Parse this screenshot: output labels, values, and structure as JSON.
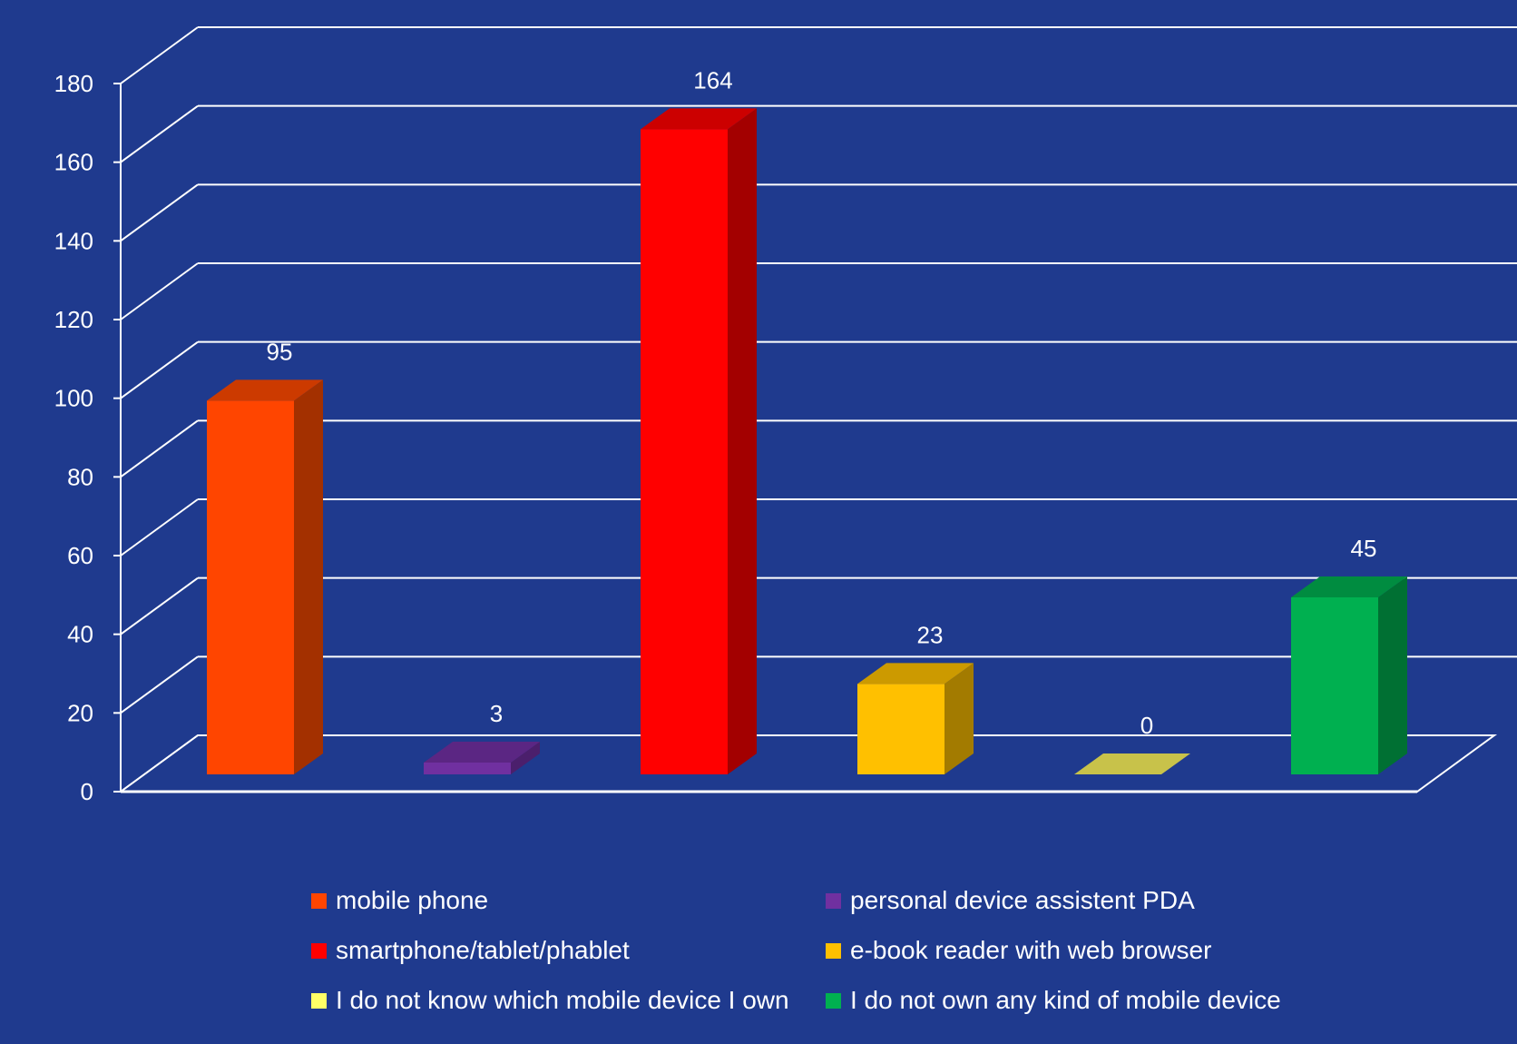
{
  "chart_data": {
    "type": "bar",
    "title": "",
    "xlabel": "",
    "ylabel": "",
    "ylim": [
      0,
      180
    ],
    "yticks": [
      0,
      20,
      40,
      60,
      80,
      100,
      120,
      140,
      160,
      180
    ],
    "grid": true,
    "legend_placement": "bottom",
    "series": [
      {
        "name": "mobile phone",
        "value": 95,
        "color": "#ff4500",
        "top_color": "#cc3a00",
        "side_color": "#a33000"
      },
      {
        "name": "personal device assistent PDA",
        "value": 3,
        "color": "#7030a0",
        "top_color": "#5b2683",
        "side_color": "#4b1f6c"
      },
      {
        "name": "smartphone/tablet/phablet",
        "value": 164,
        "color": "#ff0000",
        "top_color": "#cc0000",
        "side_color": "#a30000"
      },
      {
        "name": "e-book reader with web browser",
        "value": 23,
        "color": "#ffc000",
        "top_color": "#cc9a00",
        "side_color": "#a37b00"
      },
      {
        "name": "I do not know which mobile device I own",
        "value": 0,
        "color": "#ffff66",
        "top_color": "#c8c24a",
        "side_color": "#a39e3c"
      },
      {
        "name": "I do not own any kind of mobile device",
        "value": 45,
        "color": "#00b050",
        "top_color": "#008c40",
        "side_color": "#007033"
      }
    ]
  }
}
